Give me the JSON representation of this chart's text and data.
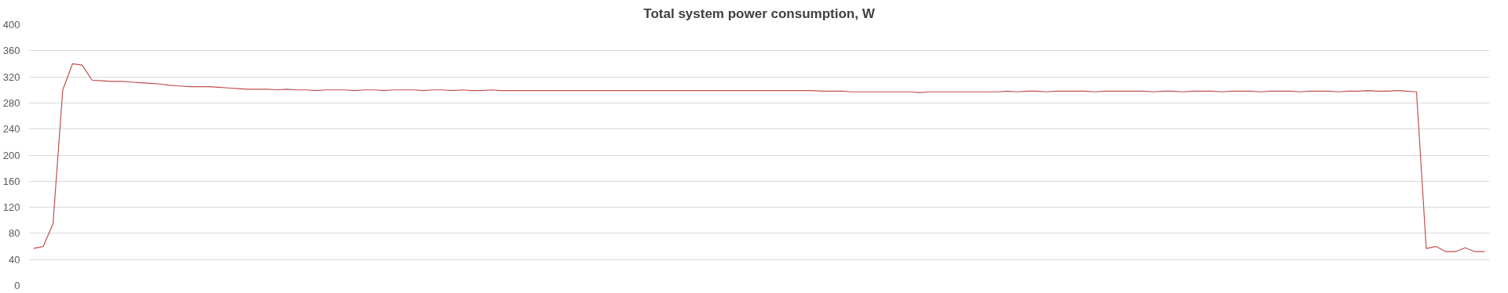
{
  "chart_data": {
    "type": "line",
    "title": "Total system power consumption, W",
    "categories": [
      null,
      null,
      null,
      null,
      null,
      null,
      null,
      null,
      null,
      null,
      null,
      null,
      null,
      null,
      null,
      null,
      null,
      null,
      null,
      null,
      null,
      null,
      null,
      null,
      null,
      null,
      null,
      null,
      null,
      null,
      null,
      null,
      null,
      null,
      null,
      null,
      null,
      null,
      null,
      null,
      null,
      null,
      null,
      null,
      null,
      null,
      null,
      null,
      null,
      null,
      null,
      null,
      null,
      null,
      null,
      null,
      null,
      null,
      null,
      null,
      null,
      null,
      null,
      null,
      null,
      null,
      null,
      null,
      null,
      null,
      null,
      null,
      null,
      null,
      null,
      null,
      null,
      null,
      null,
      null,
      null,
      null,
      null,
      null,
      null,
      null,
      null,
      null,
      null,
      null,
      null,
      null,
      null,
      null,
      null,
      null,
      null,
      null,
      null,
      null,
      null,
      null,
      null,
      null,
      null,
      null,
      null,
      null,
      null,
      null,
      null,
      null,
      null,
      null,
      null,
      null,
      null,
      null,
      null,
      null,
      null,
      null,
      null,
      null,
      null,
      null,
      null,
      null,
      null,
      null,
      null,
      null,
      null,
      null,
      null,
      null,
      null,
      null,
      null,
      null,
      null,
      null,
      null,
      null,
      null,
      null,
      null,
      null,
      null,
      null
    ],
    "series": [
      {
        "color": "#c0504d",
        "values": [
          57,
          60,
          95,
          300,
          340,
          338,
          315,
          314,
          313,
          313,
          312,
          311,
          310,
          309,
          307,
          306,
          305,
          305,
          305,
          304,
          303,
          302,
          301,
          301,
          301,
          300,
          301,
          300,
          300,
          299,
          300,
          300,
          300,
          299,
          300,
          300,
          299,
          300,
          300,
          300,
          299,
          300,
          300,
          299,
          300,
          299,
          299,
          300,
          299,
          299,
          299,
          299,
          299,
          299,
          299,
          299,
          299,
          299,
          299,
          299,
          299,
          299,
          299,
          299,
          299,
          299,
          299,
          299,
          299,
          299,
          299,
          299,
          299,
          299,
          299,
          299,
          299,
          299,
          299,
          299,
          299,
          298,
          298,
          298,
          297,
          297,
          297,
          297,
          297,
          297,
          297,
          296,
          297,
          297,
          297,
          297,
          297,
          297,
          297,
          297,
          298,
          297,
          298,
          298,
          297,
          298,
          298,
          298,
          298,
          297,
          298,
          298,
          298,
          298,
          298,
          297,
          298,
          298,
          297,
          298,
          298,
          298,
          297,
          298,
          298,
          298,
          297,
          298,
          298,
          298,
          297,
          298,
          298,
          298,
          297,
          298,
          298,
          299,
          298,
          298,
          299,
          298,
          297,
          57,
          60,
          52,
          52,
          58,
          52,
          52
        ]
      }
    ],
    "ylim": [
      0,
      400
    ],
    "yticks": [
      0,
      40,
      80,
      120,
      160,
      200,
      240,
      280,
      320,
      360,
      400
    ],
    "grid": "y",
    "tick_labels": "y",
    "marker": "none",
    "line_style": "solid"
  }
}
